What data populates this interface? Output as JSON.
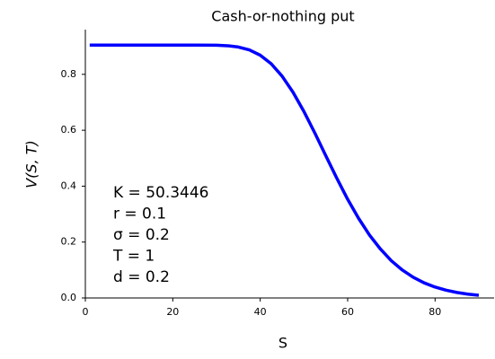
{
  "chart_data": {
    "type": "line",
    "title": "Cash-or-nothing put",
    "x_label": "S",
    "y_label": "V(S, T)",
    "annotations": [
      "K = 50.3446",
      "r = 0.1",
      "σ = 0.2",
      "T = 1",
      "d = 0.2"
    ],
    "x": [
      1,
      5,
      10,
      15,
      20,
      25,
      30,
      32.5,
      35,
      37.5,
      40,
      42.5,
      45,
      47.5,
      50,
      52.5,
      55,
      57.5,
      60,
      62.5,
      65,
      67.5,
      70,
      72.5,
      75,
      77.5,
      80,
      82.5,
      85,
      87.5,
      90
    ],
    "series": [
      {
        "name": "V",
        "color": "#0000ff",
        "values": [
          0.9048,
          0.9048,
          0.9048,
          0.9048,
          0.9048,
          0.9048,
          0.9042,
          0.9024,
          0.8977,
          0.8875,
          0.8685,
          0.838,
          0.7937,
          0.736,
          0.667,
          0.59,
          0.509,
          0.429,
          0.353,
          0.285,
          0.225,
          0.175,
          0.133,
          0.1,
          0.074,
          0.054,
          0.039,
          0.028,
          0.0196,
          0.0137,
          0.0096
        ]
      }
    ],
    "xlim": [
      0,
      93.5
    ],
    "ylim": [
      0,
      0.96
    ],
    "xticks": [
      0,
      20,
      40,
      60,
      80
    ],
    "yticks": [
      {
        "value": 0,
        "label": "0.0"
      },
      0.2,
      0.4,
      0.6,
      0.8
    ]
  }
}
